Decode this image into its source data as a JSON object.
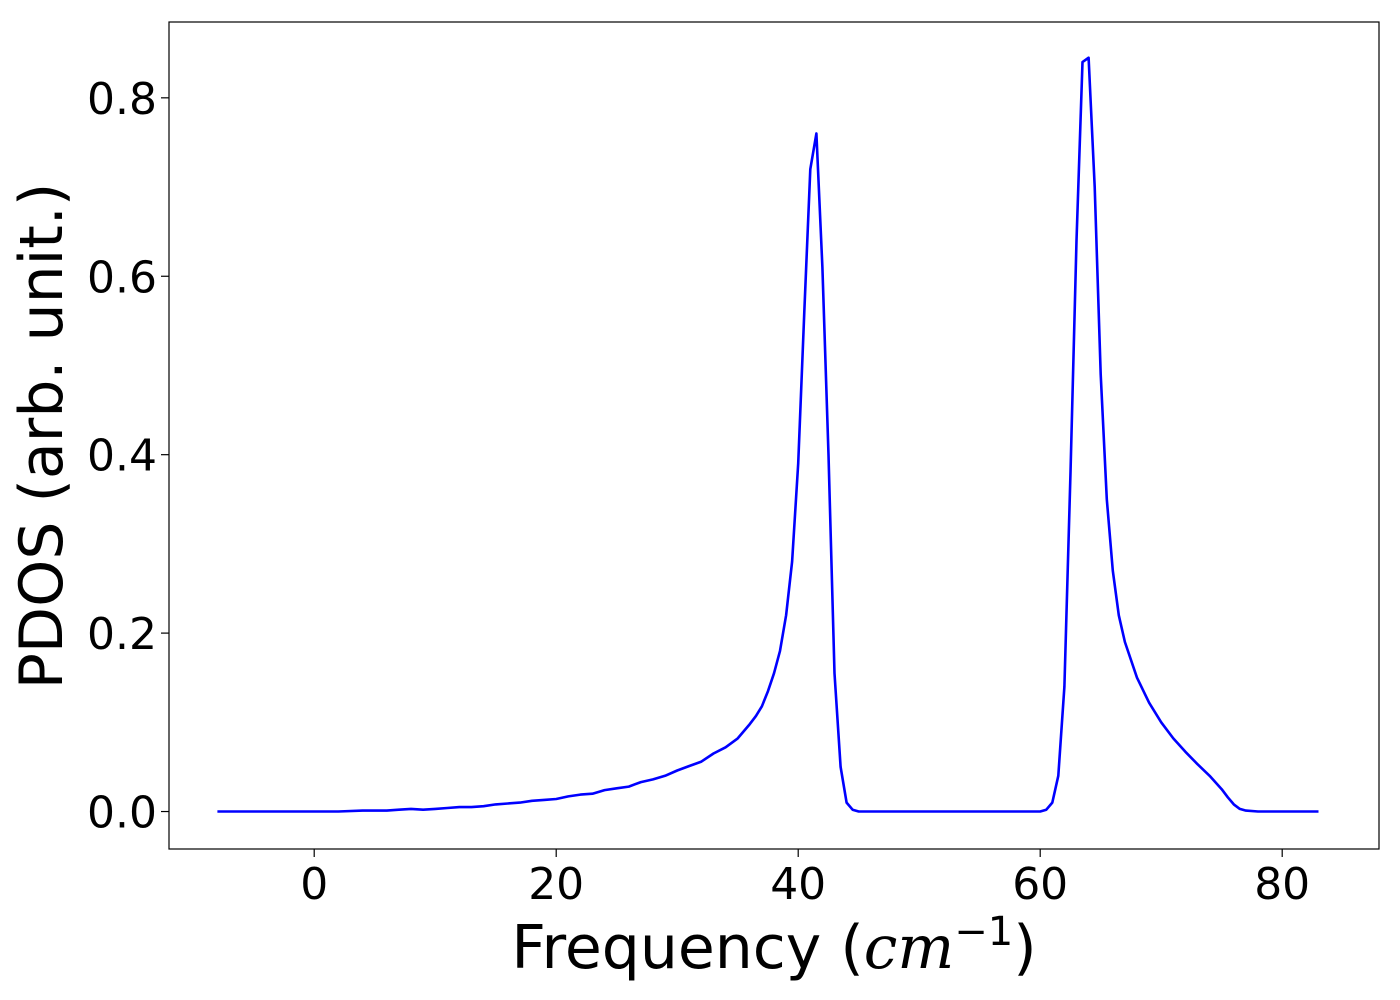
{
  "chart_data": {
    "type": "line",
    "xlabel": "Frequency",
    "xlabel_unit": "cm⁻¹",
    "xlabel_unit_base": "cm",
    "xlabel_unit_exp": "−1",
    "ylabel": "PDOS (arb. unit.)",
    "xlim": [
      -12,
      88
    ],
    "ylim": [
      -0.042,
      0.885
    ],
    "xticks": [
      0,
      20,
      40,
      60,
      80
    ],
    "xtick_labels": [
      "0",
      "20",
      "40",
      "60",
      "80"
    ],
    "yticks": [
      0.0,
      0.2,
      0.4,
      0.6,
      0.8
    ],
    "ytick_labels": [
      "0.0",
      "0.2",
      "0.4",
      "0.6",
      "0.8"
    ],
    "grid": false,
    "series": [
      {
        "color": "#0000ff",
        "x": [
          -8,
          -4,
          0,
          2,
          4,
          6,
          7,
          8,
          9,
          10,
          11,
          12,
          13,
          14,
          15,
          16,
          17,
          18,
          19,
          20,
          21,
          22,
          23,
          24,
          25,
          26,
          27,
          28,
          29,
          30,
          31,
          32,
          33,
          34,
          35,
          36,
          36.5,
          37,
          37.5,
          38,
          38.5,
          39,
          39.5,
          40,
          40.5,
          41,
          41.5,
          42,
          42.5,
          43,
          43.5,
          44,
          44.5,
          45,
          50,
          55,
          60,
          60.5,
          61,
          61.5,
          62,
          62.5,
          63,
          63.5,
          64,
          64.5,
          65,
          65.5,
          66,
          66.5,
          67,
          68,
          69,
          70,
          71,
          72,
          73,
          74,
          75,
          75.5,
          76,
          76.5,
          77,
          78,
          80,
          83
        ],
        "y": [
          0.0,
          0.0,
          0.0,
          0.0,
          0.001,
          0.001,
          0.002,
          0.003,
          0.002,
          0.003,
          0.004,
          0.005,
          0.005,
          0.006,
          0.008,
          0.009,
          0.01,
          0.012,
          0.013,
          0.014,
          0.017,
          0.019,
          0.02,
          0.024,
          0.026,
          0.028,
          0.033,
          0.036,
          0.04,
          0.046,
          0.051,
          0.056,
          0.065,
          0.072,
          0.082,
          0.098,
          0.107,
          0.118,
          0.135,
          0.155,
          0.18,
          0.22,
          0.28,
          0.39,
          0.56,
          0.72,
          0.76,
          0.61,
          0.4,
          0.155,
          0.05,
          0.01,
          0.002,
          0.0,
          0.0,
          0.0,
          0.0,
          0.002,
          0.01,
          0.04,
          0.14,
          0.38,
          0.64,
          0.84,
          0.845,
          0.7,
          0.49,
          0.35,
          0.27,
          0.22,
          0.19,
          0.15,
          0.122,
          0.1,
          0.082,
          0.067,
          0.053,
          0.04,
          0.025,
          0.016,
          0.008,
          0.003,
          0.001,
          0.0,
          0.0,
          0.0
        ]
      }
    ]
  }
}
